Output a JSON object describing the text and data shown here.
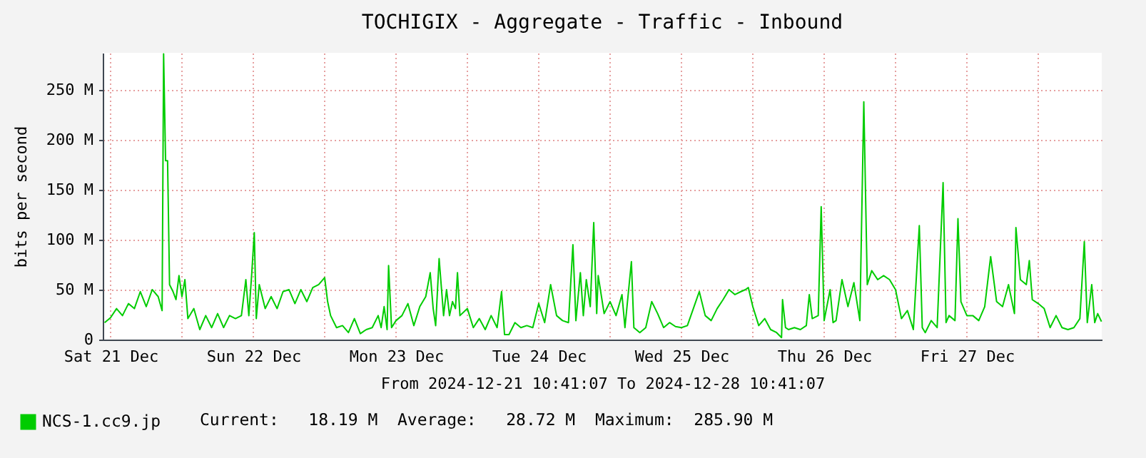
{
  "chart_data": {
    "type": "line",
    "title": "TOCHIGIX - Aggregate - Traffic - Inbound",
    "xlabel": "From 2024-12-21 10:41:07 To 2024-12-28 10:41:07",
    "ylabel": "bits per second",
    "annotations": [
      "Current:   18.19 M  Average:   28.72 M  Maximum:  285.90 M"
    ],
    "xlim": [
      "2024-12-21T10:41",
      "2024-12-28T10:41"
    ],
    "xticks": [
      {
        "value": "2024-12-21T12:00",
        "label": "Sat 21 Dec"
      },
      {
        "value": "2024-12-22T00:00",
        "label": null
      },
      {
        "value": "2024-12-22T12:00",
        "label": "Sun 22 Dec"
      },
      {
        "value": "2024-12-23T00:00",
        "label": null
      },
      {
        "value": "2024-12-23T12:00",
        "label": "Mon 23 Dec"
      },
      {
        "value": "2024-12-24T00:00",
        "label": null
      },
      {
        "value": "2024-12-24T12:00",
        "label": "Tue 24 Dec"
      },
      {
        "value": "2024-12-25T00:00",
        "label": null
      },
      {
        "value": "2024-12-25T12:00",
        "label": "Wed 25 Dec"
      },
      {
        "value": "2024-12-26T00:00",
        "label": null
      },
      {
        "value": "2024-12-26T12:00",
        "label": "Thu 26 Dec"
      },
      {
        "value": "2024-12-27T00:00",
        "label": null
      },
      {
        "value": "2024-12-27T12:00",
        "label": "Fri 27 Dec"
      },
      {
        "value": "2024-12-28T00:00",
        "label": null
      }
    ],
    "ylim": [
      0,
      287
    ],
    "yticks": [
      {
        "value": 0,
        "label": "0"
      },
      {
        "value": 50,
        "label": "50 M"
      },
      {
        "value": 100,
        "label": "100 M"
      },
      {
        "value": 150,
        "label": "150 M"
      },
      {
        "value": 200,
        "label": "200 M"
      },
      {
        "value": 250,
        "label": "250 M"
      }
    ],
    "grid": true,
    "legend": "bottom left",
    "x": [
      "2024-12-21T11:00",
      "2024-12-21T12:00",
      "2024-12-21T13:00",
      "2024-12-21T14:00",
      "2024-12-21T15:00",
      "2024-12-21T16:00",
      "2024-12-21T17:00",
      "2024-12-21T18:00",
      "2024-12-21T19:00",
      "2024-12-21T20:00",
      "2024-12-21T20:40",
      "2024-12-21T20:55",
      "2024-12-21T21:15",
      "2024-12-21T21:35",
      "2024-12-21T21:55",
      "2024-12-21T22:30",
      "2024-12-21T23:00",
      "2024-12-21T23:30",
      "2024-12-22T00:00",
      "2024-12-22T00:30",
      "2024-12-22T01:00",
      "2024-12-22T02:00",
      "2024-12-22T03:00",
      "2024-12-22T04:00",
      "2024-12-22T05:00",
      "2024-12-22T06:00",
      "2024-12-22T07:00",
      "2024-12-22T08:00",
      "2024-12-22T09:00",
      "2024-12-22T10:00",
      "2024-12-22T10:45",
      "2024-12-22T11:15",
      "2024-12-22T11:45",
      "2024-12-22T12:10",
      "2024-12-22T12:30",
      "2024-12-22T13:00",
      "2024-12-22T14:00",
      "2024-12-22T15:00",
      "2024-12-22T16:00",
      "2024-12-22T17:00",
      "2024-12-22T18:00",
      "2024-12-22T19:00",
      "2024-12-22T20:00",
      "2024-12-22T21:00",
      "2024-12-22T22:00",
      "2024-12-22T23:00",
      "2024-12-23T00:00",
      "2024-12-23T00:30",
      "2024-12-23T01:00",
      "2024-12-23T02:00",
      "2024-12-23T03:00",
      "2024-12-23T04:00",
      "2024-12-23T05:00",
      "2024-12-23T06:00",
      "2024-12-23T07:00",
      "2024-12-23T08:00",
      "2024-12-23T09:00",
      "2024-12-23T09:30",
      "2024-12-23T10:00",
      "2024-12-23T10:30",
      "2024-12-23T10:45",
      "2024-12-23T11:15",
      "2024-12-23T12:00",
      "2024-12-23T13:00",
      "2024-12-23T14:00",
      "2024-12-23T15:00",
      "2024-12-23T16:00",
      "2024-12-23T17:00",
      "2024-12-23T17:45",
      "2024-12-23T18:15",
      "2024-12-23T18:40",
      "2024-12-23T19:15",
      "2024-12-23T20:00",
      "2024-12-23T20:30",
      "2024-12-23T21:00",
      "2024-12-23T21:30",
      "2024-12-23T22:00",
      "2024-12-23T22:20",
      "2024-12-23T22:45",
      "2024-12-24T00:00",
      "2024-12-24T01:00",
      "2024-12-24T02:00",
      "2024-12-24T03:00",
      "2024-12-24T04:00",
      "2024-12-24T05:00",
      "2024-12-24T05:45",
      "2024-12-24T06:15",
      "2024-12-24T07:00",
      "2024-12-24T08:00",
      "2024-12-24T09:00",
      "2024-12-24T10:00",
      "2024-12-24T11:00",
      "2024-12-24T12:00",
      "2024-12-24T13:00",
      "2024-12-24T14:00",
      "2024-12-24T15:00",
      "2024-12-24T16:00",
      "2024-12-24T17:00",
      "2024-12-24T17:45",
      "2024-12-24T18:15",
      "2024-12-24T19:00",
      "2024-12-24T19:30",
      "2024-12-24T20:00",
      "2024-12-24T20:40",
      "2024-12-24T21:15",
      "2024-12-24T21:45",
      "2024-12-24T22:00",
      "2024-12-24T23:00",
      "2024-12-25T00:00",
      "2024-12-25T01:00",
      "2024-12-25T02:00",
      "2024-12-25T02:30",
      "2024-12-25T03:35",
      "2024-12-25T04:00",
      "2024-12-25T05:00",
      "2024-12-25T06:00",
      "2024-12-25T07:00",
      "2024-12-25T08:00",
      "2024-12-25T09:00",
      "2024-12-25T10:00",
      "2024-12-25T11:00",
      "2024-12-25T12:00",
      "2024-12-25T13:00",
      "2024-12-25T14:00",
      "2024-12-25T15:00",
      "2024-12-25T16:00",
      "2024-12-25T17:00",
      "2024-12-25T18:00",
      "2024-12-25T19:00",
      "2024-12-25T20:00",
      "2024-12-25T21:00",
      "2024-12-25T22:00",
      "2024-12-25T22:45",
      "2024-12-25T23:15",
      "2024-12-26T00:00",
      "2024-12-26T01:00",
      "2024-12-26T02:00",
      "2024-12-26T03:00",
      "2024-12-26T04:00",
      "2024-12-26T04:50",
      "2024-12-26T05:00",
      "2024-12-26T05:30",
      "2024-12-26T06:00",
      "2024-12-26T07:00",
      "2024-12-26T08:00",
      "2024-12-26T09:00",
      "2024-12-26T09:30",
      "2024-12-26T10:00",
      "2024-12-26T11:00",
      "2024-12-26T11:30",
      "2024-12-26T12:00",
      "2024-12-26T13:00",
      "2024-12-26T13:30",
      "2024-12-26T14:00",
      "2024-12-26T15:00",
      "2024-12-26T16:00",
      "2024-12-26T17:00",
      "2024-12-26T18:00",
      "2024-12-26T18:40",
      "2024-12-26T19:15",
      "2024-12-26T20:00",
      "2024-12-26T21:00",
      "2024-12-26T22:00",
      "2024-12-26T23:00",
      "2024-12-27T00:00",
      "2024-12-27T01:00",
      "2024-12-27T02:00",
      "2024-12-27T03:00",
      "2024-12-27T04:00",
      "2024-12-27T04:30",
      "2024-12-27T05:00",
      "2024-12-27T06:00",
      "2024-12-27T07:00",
      "2024-12-27T08:00",
      "2024-12-27T08:30",
      "2024-12-27T09:00",
      "2024-12-27T10:00",
      "2024-12-27T10:30",
      "2024-12-27T11:00",
      "2024-12-27T12:00",
      "2024-12-27T13:00",
      "2024-12-27T14:00",
      "2024-12-27T15:00",
      "2024-12-27T16:00",
      "2024-12-27T17:00",
      "2024-12-27T18:00",
      "2024-12-27T19:00",
      "2024-12-27T20:00",
      "2024-12-27T20:15",
      "2024-12-27T21:00",
      "2024-12-27T22:00",
      "2024-12-27T22:30",
      "2024-12-27T23:00",
      "2024-12-28T00:00",
      "2024-12-28T01:00",
      "2024-12-28T02:00",
      "2024-12-28T03:00",
      "2024-12-28T04:00",
      "2024-12-28T05:00",
      "2024-12-28T06:00",
      "2024-12-28T07:00",
      "2024-12-28T07:45",
      "2024-12-28T08:15",
      "2024-12-28T09:00",
      "2024-12-28T09:30",
      "2024-12-28T10:00",
      "2024-12-28T10:38"
    ],
    "series": [
      {
        "name": "NCS-1.cc9.jp",
        "color": "#00cc00",
        "values": [
          17,
          22,
          31,
          24,
          36,
          31,
          48,
          33,
          50,
          43,
          29,
          286,
          179,
          179,
          55,
          48,
          40,
          64,
          43,
          60,
          21,
          31,
          10,
          24,
          12,
          26,
          12,
          24,
          21,
          24,
          60,
          24,
          67,
          107,
          21,
          55,
          31,
          43,
          31,
          48,
          50,
          36,
          50,
          38,
          52,
          55,
          62,
          38,
          24,
          12,
          14,
          7,
          21,
          6,
          10,
          12,
          24,
          12,
          33,
          10,
          74,
          12,
          19,
          24,
          36,
          14,
          33,
          43,
          67,
          31,
          14,
          81,
          24,
          50,
          24,
          38,
          31,
          67,
          24,
          31,
          12,
          21,
          10,
          24,
          12,
          48,
          5,
          5,
          17,
          12,
          14,
          12,
          36,
          17,
          55,
          24,
          19,
          17,
          95,
          19,
          67,
          24,
          60,
          33,
          117,
          26,
          64,
          26,
          38,
          24,
          45,
          12,
          78,
          12,
          7,
          12,
          38,
          26,
          12,
          17,
          13,
          12,
          14,
          31,
          48,
          24,
          19,
          31,
          40,
          50,
          45,
          48,
          50,
          52,
          33,
          14,
          21,
          10,
          7,
          2,
          40,
          12,
          10,
          12,
          10,
          14,
          45,
          21,
          24,
          133,
          19,
          50,
          17,
          19,
          60,
          33,
          57,
          19,
          238,
          55,
          69,
          60,
          64,
          60,
          50,
          21,
          29,
          10,
          114,
          12,
          7,
          19,
          12,
          157,
          17,
          24,
          19,
          121,
          38,
          24,
          24,
          19,
          33,
          83,
          38,
          33,
          55,
          26,
          112,
          60,
          55,
          79,
          40,
          36,
          31,
          12,
          24,
          12,
          10,
          12,
          21,
          98,
          17,
          55,
          17,
          26,
          18
        ]
      }
    ]
  }
}
